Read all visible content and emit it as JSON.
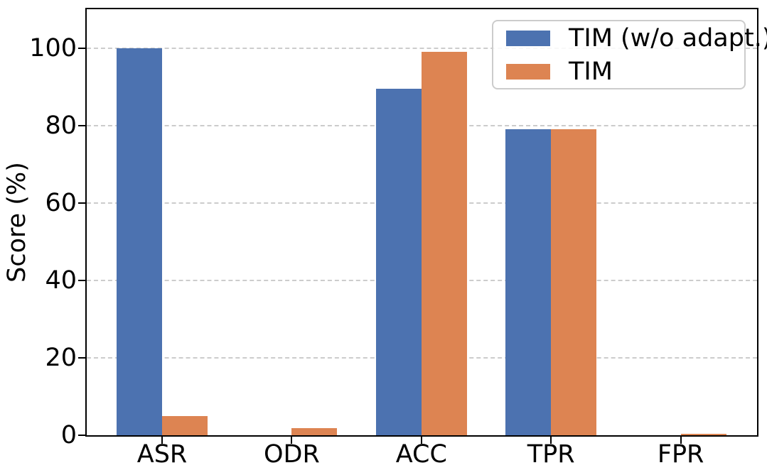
{
  "chart_data": {
    "type": "bar",
    "title": "",
    "categories": [
      "ASR",
      "ODR",
      "ACC",
      "TPR",
      "FPR"
    ],
    "series": [
      {
        "name": "TIM (w/o adapt.)",
        "color": "#4C72B0",
        "values": [
          100,
          0,
          89.5,
          79,
          0
        ]
      },
      {
        "name": "TIM",
        "color": "#DD8452",
        "values": [
          4.9,
          1.8,
          99,
          79,
          0.4
        ]
      }
    ],
    "xlabel": "",
    "ylabel": "Score (%)",
    "ylim": [
      0,
      110
    ],
    "yticks": [
      0,
      20,
      40,
      60,
      80,
      100
    ],
    "grid": {
      "axis": "y",
      "style": "dashed",
      "color": "#cccccc",
      "tick_values": [
        20,
        40,
        60,
        80,
        100
      ]
    },
    "legend": {
      "position": "upper-right",
      "labels": [
        "TIM (w/o adapt.)",
        "TIM"
      ]
    },
    "colors": {
      "axis": "#000000",
      "text": "#000000",
      "background": "#ffffff",
      "grid": "#cccccc",
      "legend_border": "#cccccc"
    }
  }
}
